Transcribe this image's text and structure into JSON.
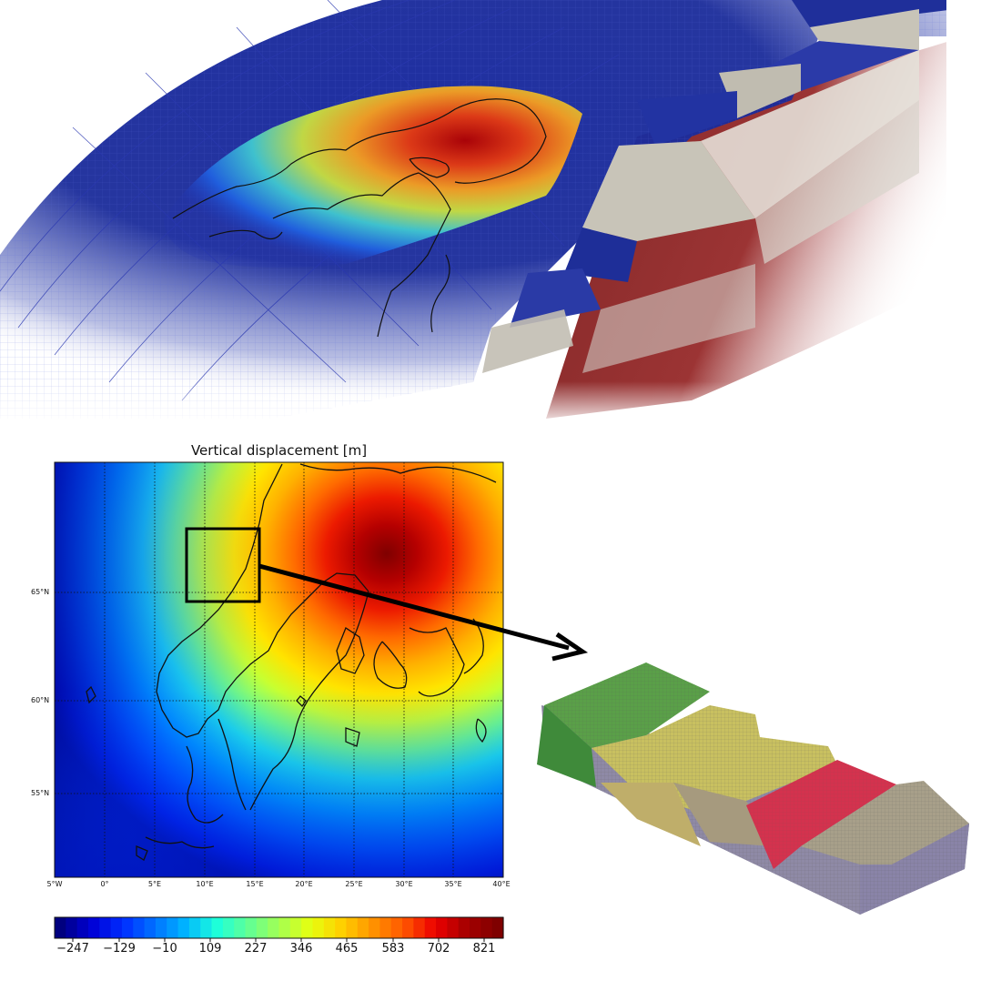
{
  "map": {
    "title": "Vertical displacement [m]",
    "lat_labels": [
      "65°N",
      "60°N",
      "55°N"
    ],
    "lon_labels": [
      "5°W",
      "0°",
      "5°E",
      "10°E",
      "15°E",
      "20°E",
      "25°E",
      "30°E",
      "35°E",
      "40°E"
    ]
  },
  "colorbar": {
    "ticks": [
      "−247",
      "−129",
      "−10",
      "109",
      "227",
      "346",
      "465",
      "583",
      "702",
      "821"
    ],
    "colors": [
      "#00007f",
      "#0000d5",
      "#002cff",
      "#0070ff",
      "#00b4ff",
      "#1cffdb",
      "#5fff97",
      "#a3ff53",
      "#e6ff10",
      "#ffd000",
      "#ff9300",
      "#ff5600",
      "#ec0000",
      "#a60000",
      "#7f0000"
    ]
  }
}
